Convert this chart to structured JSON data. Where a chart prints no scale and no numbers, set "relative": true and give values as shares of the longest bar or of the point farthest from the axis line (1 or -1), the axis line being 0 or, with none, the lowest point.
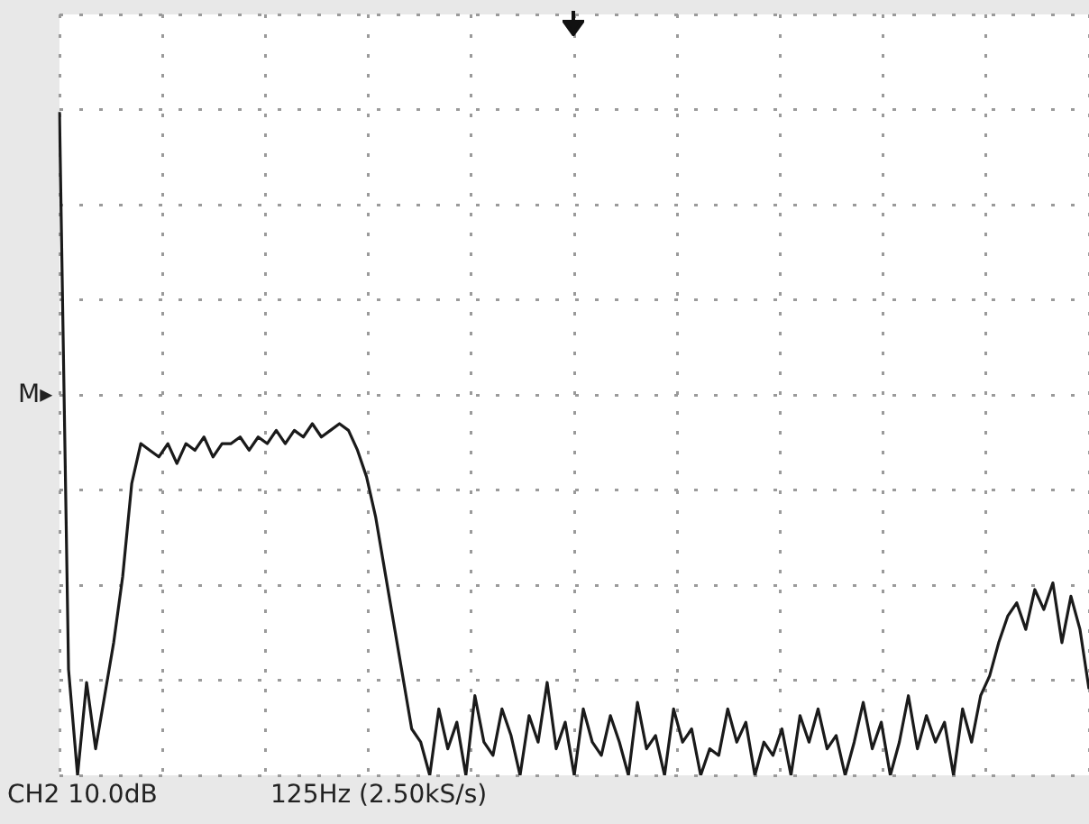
{
  "chart_data": {
    "type": "line",
    "relative": true,
    "grid": true,
    "annotations": [
      "CH2 10.0dB",
      "125Hz (2.50kS/s)",
      "M▸"
    ],
    "categories": [
      null,
      null,
      null,
      null,
      null,
      null,
      null,
      null,
      null,
      null,
      null,
      null,
      null,
      null,
      null,
      null,
      null,
      null,
      null,
      null,
      null,
      null,
      null,
      null,
      null,
      null,
      null,
      null,
      null,
      null,
      null,
      null,
      null,
      null,
      null,
      null,
      null,
      null,
      null,
      null,
      null,
      null,
      null,
      null,
      null,
      null,
      null,
      null,
      null,
      null,
      null,
      null,
      null,
      null,
      null,
      null,
      null,
      null,
      null,
      null,
      null,
      null,
      null,
      null,
      null,
      null,
      null,
      null,
      null,
      null,
      null,
      null,
      null,
      null,
      null,
      null,
      null,
      null,
      null,
      null,
      null,
      null,
      null,
      null,
      null,
      null,
      null,
      null,
      null,
      null,
      null,
      null,
      null,
      null,
      null,
      null,
      null,
      null,
      null,
      null,
      null,
      null,
      null,
      null,
      null,
      null,
      null,
      null,
      null,
      null,
      null,
      null,
      null,
      null,
      null
    ],
    "series": [
      {
        "color": "#1a1a1a",
        "values": [
          1.0,
          0.16,
          0,
          0.14,
          0.04,
          0.12,
          0.2,
          0.3,
          0.44,
          0.5,
          0.49,
          0.48,
          0.5,
          0.47,
          0.5,
          0.49,
          0.51,
          0.48,
          0.5,
          0.5,
          0.51,
          0.49,
          0.51,
          0.5,
          0.52,
          0.5,
          0.52,
          0.51,
          0.53,
          0.51,
          0.52,
          0.53,
          0.52,
          0.49,
          0.45,
          0.39,
          0.31,
          0.23,
          0.15,
          0.07,
          0.05,
          0,
          0.1,
          0.04,
          0.08,
          0,
          0.12,
          0.05,
          0.03,
          0.1,
          0.06,
          0,
          0.09,
          0.05,
          0.14,
          0.04,
          0.08,
          0,
          0.1,
          0.05,
          0.03,
          0.09,
          0.05,
          0,
          0.11,
          0.04,
          0.06,
          0,
          0.1,
          0.05,
          0.07,
          0,
          0.04,
          0.03,
          0.1,
          0.05,
          0.08,
          0,
          0.05,
          0.03,
          0.07,
          0,
          0.09,
          0.05,
          0.1,
          0.04,
          0.06,
          0,
          0.05,
          0.11,
          0.04,
          0.08,
          0,
          0.05,
          0.12,
          0.04,
          0.09,
          0.05,
          0.08,
          0,
          0.1,
          0.05,
          0.12,
          0.15,
          0.2,
          0.24,
          0.26,
          0.22,
          0.28,
          0.25,
          0.29,
          0.2,
          0.27,
          0.22,
          0.13
        ]
      }
    ]
  }
}
